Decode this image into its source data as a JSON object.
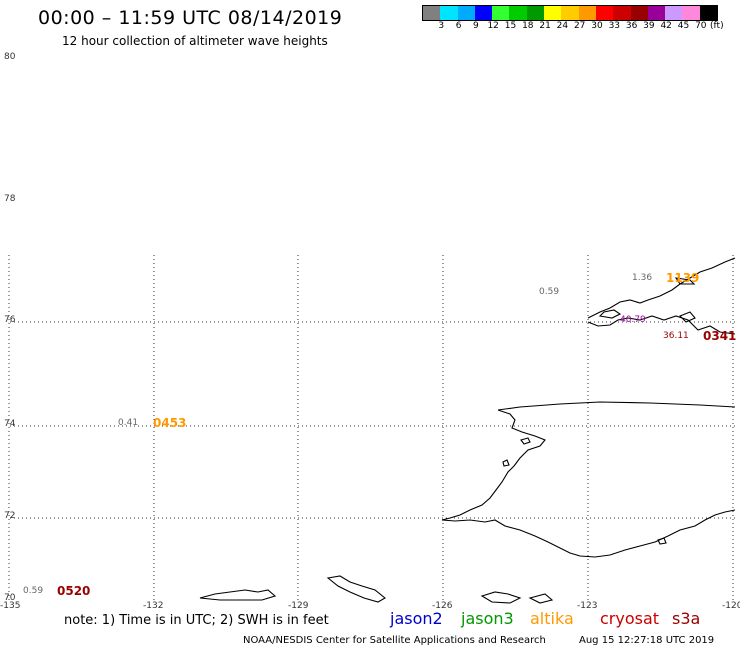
{
  "header": {
    "title": "00:00 – 11:59 UTC 08/14/2019",
    "subtitle": "12 hour collection of altimeter wave heights"
  },
  "scale": {
    "colors": [
      "#808080",
      "#00e5ff",
      "#00aaff",
      "#0000ff",
      "#33ff33",
      "#00cc00",
      "#009900",
      "#ffff00",
      "#ffcc00",
      "#ff9900",
      "#ff0000",
      "#cc0000",
      "#990000",
      "#990099",
      "#cc99ff",
      "#ff88dd",
      "#000000"
    ],
    "labels": [
      "3",
      "6",
      "9",
      "12",
      "15",
      "18",
      "21",
      "24",
      "27",
      "30",
      "33",
      "36",
      "39",
      "42",
      "45",
      "70",
      "(ft)"
    ]
  },
  "axes": {
    "lat_labels": [
      "80",
      "78",
      "76",
      "74",
      "72",
      "70"
    ],
    "lon_labels": [
      "-135",
      "-132",
      "-129",
      "-126",
      "-123",
      "-120"
    ]
  },
  "observations": [
    {
      "value": "1.36",
      "time": "1139",
      "time_color": "#ff9900"
    },
    {
      "value": "0.59",
      "time": "",
      "time_color": "#808080"
    },
    {
      "value": "40.79",
      "time": "",
      "time_color": "#990099"
    },
    {
      "value": "36.11",
      "time": "0341",
      "time_color": "#990000"
    },
    {
      "value": "0.41",
      "time": "0453",
      "time_color": "#ff9900"
    },
    {
      "value": "0.59",
      "time": "0520",
      "time_color": "#990000"
    }
  ],
  "footer": {
    "note": "note:  1) Time is in UTC;  2) SWH is in feet",
    "satellites": [
      {
        "name": "jason2",
        "color": "#0000cc"
      },
      {
        "name": "jason3",
        "color": "#009900"
      },
      {
        "name": "altika",
        "color": "#ff9900"
      },
      {
        "name": "cryosat",
        "color": "#cc0000"
      },
      {
        "name": "s3a",
        "color": "#990000"
      }
    ],
    "credit": "NOAA/NESDIS Center for Satellite Applications and Research",
    "timestamp": "Aug 15 12:27:18 UTC 2019"
  }
}
